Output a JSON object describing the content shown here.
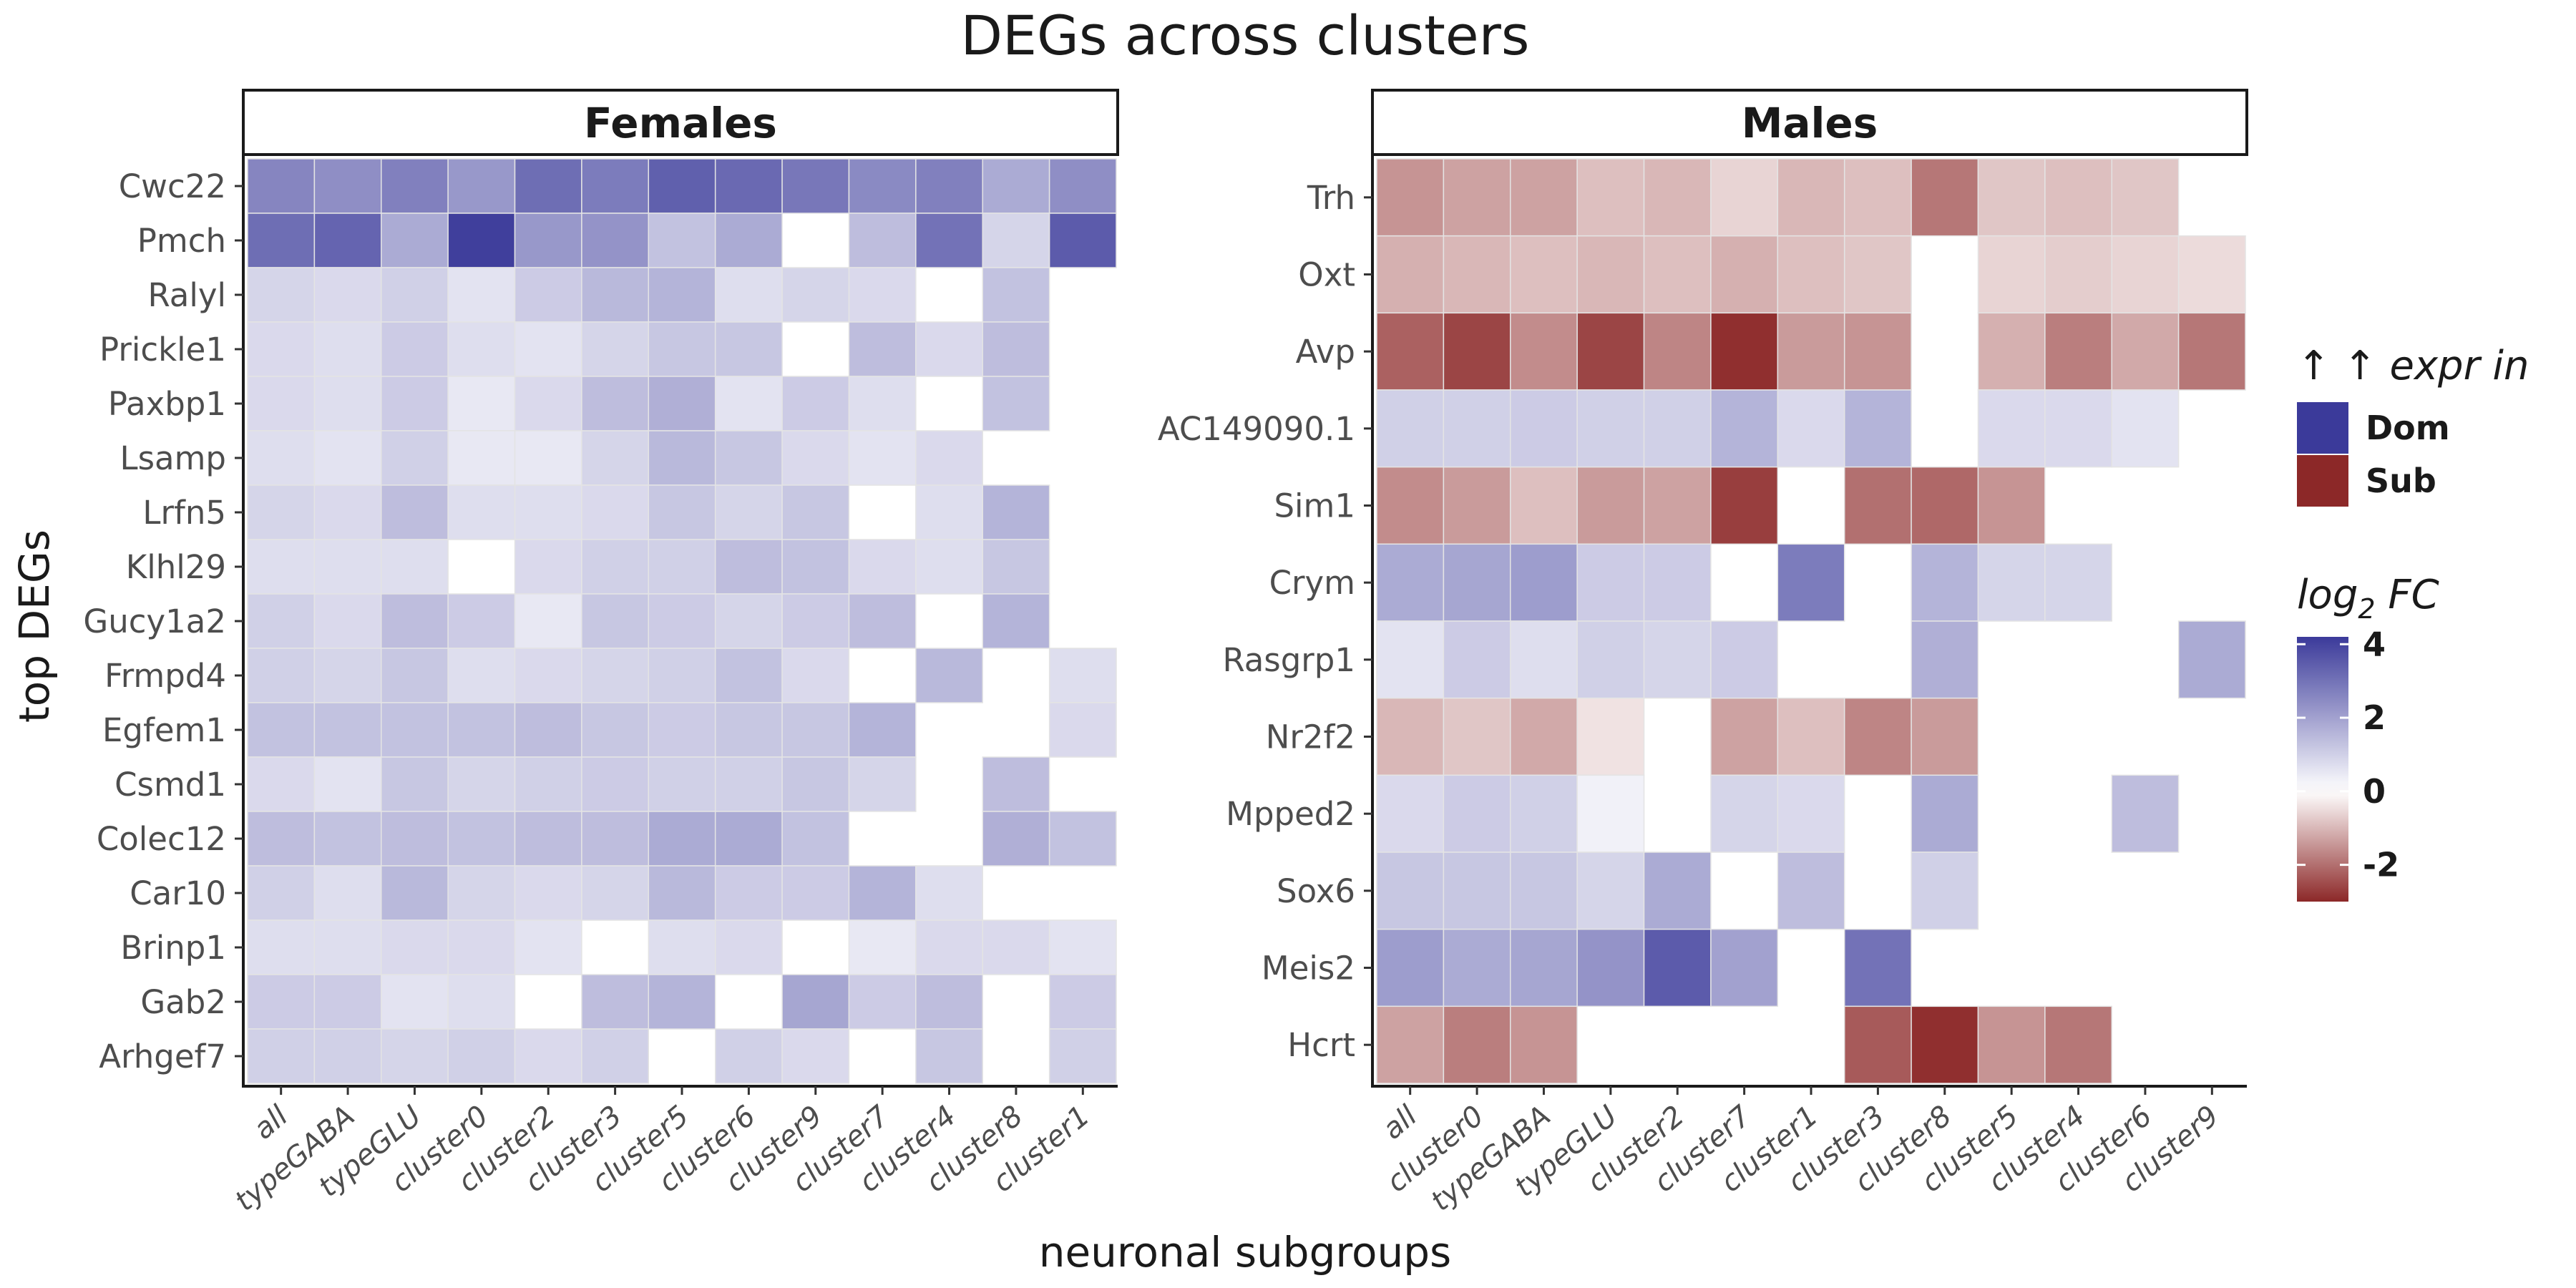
{
  "chart_data": {
    "type": "heatmap",
    "title": "DEGs across clusters",
    "xlabel": "neuronal subgroups",
    "ylabel": "top DEGs",
    "colors": {
      "dom": "#3b3a9a",
      "sub": "#8c2828",
      "mid": "#ffffff",
      "grid": "#e4e4e4"
    },
    "legend": {
      "direction_title": "↑ ↑ expr in",
      "direction_items": [
        {
          "label": "Dom",
          "color": "#3b3a9a"
        },
        {
          "label": "Sub",
          "color": "#8c2828"
        }
      ],
      "fc_title": "log2 FC",
      "fc_title_base": "log",
      "fc_title_sub": "2",
      "fc_title_rest": " FC",
      "fc_breaks": [
        "4",
        "2",
        "0",
        "-2"
      ],
      "fc_range": [
        -3,
        4.2
      ],
      "position": "right"
    },
    "panels": [
      {
        "name": "Females",
        "columns": [
          "all",
          "typeGABA",
          "typeGLU",
          "cluster0",
          "cluster2",
          "cluster3",
          "cluster5",
          "cluster6",
          "cluster9",
          "cluster7",
          "cluster4",
          "cluster8",
          "cluster1"
        ],
        "rows": [
          "Cwc22",
          "Pmch",
          "Ralyl",
          "Prickle1",
          "Paxbp1",
          "Lsamp",
          "Lrfn5",
          "Klhl29",
          "Gucy1a2",
          "Frmpd4",
          "Egfem1",
          "Csmd1",
          "Colec12",
          "Car10",
          "Brinp1",
          "Gab2",
          "Arhgef7"
        ],
        "values": [
          [
            2.6,
            2.4,
            2.7,
            2.2,
            3.1,
            2.8,
            3.4,
            3.2,
            2.9,
            2.5,
            2.7,
            1.8,
            2.4
          ],
          [
            3.1,
            3.3,
            1.8,
            4.1,
            2.2,
            2.3,
            1.3,
            1.8,
            null,
            1.4,
            3.0,
            0.9,
            3.5
          ],
          [
            0.9,
            0.8,
            1.0,
            0.6,
            1.1,
            1.5,
            1.6,
            0.7,
            0.9,
            0.8,
            null,
            1.3,
            null
          ],
          [
            0.8,
            0.7,
            1.1,
            0.7,
            0.6,
            0.9,
            1.2,
            1.2,
            null,
            1.4,
            0.8,
            1.4,
            null
          ],
          [
            0.8,
            0.7,
            1.1,
            0.5,
            0.8,
            1.4,
            1.7,
            0.6,
            1.1,
            0.7,
            null,
            1.3,
            null
          ],
          [
            0.7,
            0.6,
            1.0,
            0.5,
            0.5,
            0.9,
            1.5,
            1.2,
            0.8,
            0.6,
            0.8,
            null,
            null
          ],
          [
            0.9,
            0.8,
            1.4,
            0.7,
            0.7,
            0.8,
            1.2,
            0.9,
            1.2,
            null,
            0.7,
            1.6,
            null
          ],
          [
            0.7,
            0.7,
            0.7,
            null,
            0.8,
            1.0,
            1.0,
            1.4,
            1.3,
            0.8,
            0.7,
            1.2,
            null
          ],
          [
            1.0,
            0.8,
            1.4,
            1.1,
            0.5,
            1.2,
            1.1,
            0.9,
            1.1,
            1.4,
            null,
            1.6,
            null
          ],
          [
            1.0,
            0.9,
            1.2,
            0.7,
            0.8,
            0.9,
            1.0,
            1.3,
            0.8,
            null,
            1.5,
            null,
            0.7
          ],
          [
            1.3,
            1.3,
            1.3,
            1.3,
            1.4,
            1.2,
            1.1,
            1.2,
            1.2,
            1.6,
            null,
            null,
            0.8
          ],
          [
            0.8,
            0.6,
            1.2,
            0.9,
            1.0,
            1.1,
            1.0,
            1.0,
            1.2,
            0.9,
            null,
            1.4,
            null
          ],
          [
            1.4,
            1.3,
            1.4,
            1.3,
            1.4,
            1.4,
            1.8,
            1.8,
            1.3,
            null,
            null,
            1.7,
            1.3
          ],
          [
            1.0,
            0.7,
            1.5,
            0.9,
            0.8,
            0.9,
            1.5,
            1.1,
            1.1,
            1.6,
            0.7,
            null,
            null
          ],
          [
            0.7,
            0.7,
            0.8,
            0.8,
            0.6,
            null,
            0.7,
            0.8,
            null,
            0.5,
            0.8,
            0.8,
            0.6
          ],
          [
            1.1,
            1.1,
            0.6,
            0.7,
            null,
            1.4,
            1.6,
            null,
            1.9,
            1.1,
            1.4,
            null,
            1.1
          ],
          [
            1.0,
            1.0,
            0.9,
            1.0,
            0.8,
            1.0,
            null,
            1.0,
            0.8,
            null,
            1.2,
            null,
            1.0
          ]
        ]
      },
      {
        "name": "Males",
        "columns": [
          "all",
          "cluster0",
          "typeGABA",
          "typeGLU",
          "cluster2",
          "cluster7",
          "cluster1",
          "cluster3",
          "cluster8",
          "cluster5",
          "cluster4",
          "cluster6",
          "cluster9"
        ],
        "rows": [
          "Trh",
          "Oxt",
          "Avp",
          "AC149090.1",
          "Sim1",
          "Crym",
          "Rasgrp1",
          "Nr2f2",
          "Mpped2",
          "Sox6",
          "Meis2",
          "Hcrt"
        ],
        "values": [
          [
            -1.5,
            -1.3,
            -1.3,
            -0.9,
            -1.0,
            -0.6,
            -1.0,
            -0.9,
            -1.9,
            -0.8,
            -0.9,
            -0.8,
            null
          ],
          [
            -1.1,
            -1.0,
            -0.9,
            -1.0,
            -0.9,
            -1.1,
            -0.9,
            -0.8,
            null,
            -0.6,
            -0.7,
            -0.6,
            -0.5
          ],
          [
            -2.2,
            -2.6,
            -1.6,
            -2.6,
            -1.7,
            -2.9,
            -1.4,
            -1.5,
            null,
            -1.1,
            -1.8,
            -1.2,
            -1.9
          ],
          [
            1.0,
            1.0,
            1.1,
            1.0,
            1.0,
            1.6,
            0.8,
            1.6,
            null,
            0.8,
            0.8,
            0.6,
            null
          ],
          [
            -1.6,
            -1.4,
            -0.9,
            -1.4,
            -1.3,
            -2.7,
            null,
            -2.0,
            -2.1,
            -1.5,
            null,
            null,
            null
          ],
          [
            1.8,
            1.9,
            2.1,
            1.1,
            1.1,
            null,
            2.8,
            null,
            1.6,
            0.9,
            0.9,
            null,
            null
          ],
          [
            0.6,
            1.1,
            0.7,
            1.0,
            0.9,
            1.1,
            null,
            null,
            1.7,
            null,
            null,
            null,
            1.8
          ],
          [
            -1.0,
            -0.8,
            -1.2,
            -0.4,
            null,
            -1.3,
            -0.9,
            -1.7,
            -1.4,
            null,
            null,
            null,
            null
          ],
          [
            0.8,
            1.1,
            1.0,
            0.3,
            null,
            0.9,
            0.8,
            null,
            1.8,
            null,
            null,
            1.4,
            null
          ],
          [
            1.2,
            1.2,
            1.2,
            0.9,
            1.8,
            null,
            1.4,
            null,
            1.0,
            null,
            null,
            null,
            null
          ],
          [
            2.1,
            1.8,
            1.9,
            2.3,
            3.5,
            2.0,
            null,
            3.0,
            null,
            null,
            null,
            null,
            null
          ],
          [
            -1.3,
            -1.8,
            -1.5,
            null,
            null,
            null,
            null,
            -2.3,
            -2.9,
            -1.5,
            -1.9,
            null,
            null
          ]
        ]
      }
    ]
  }
}
